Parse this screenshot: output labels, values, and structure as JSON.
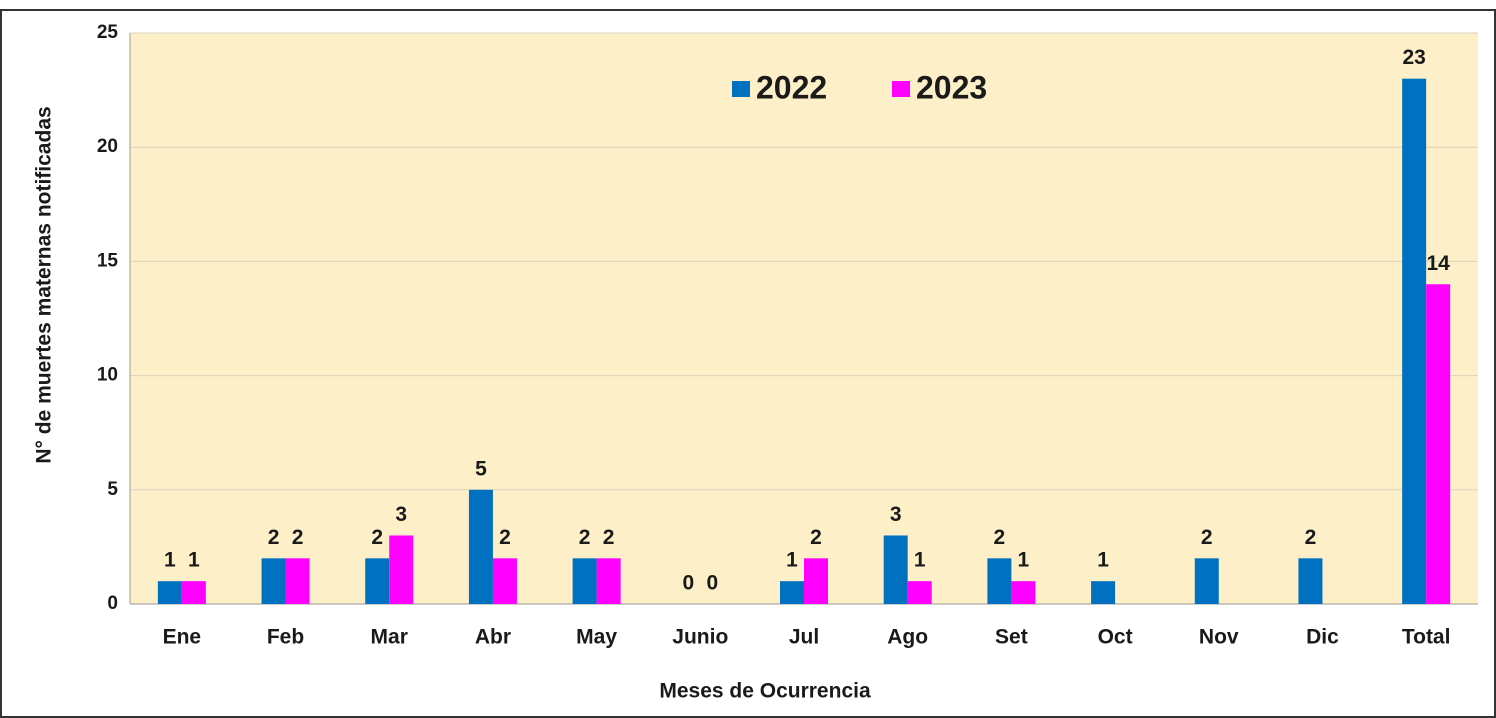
{
  "chart_data": {
    "type": "bar",
    "x_label": "Meses de Ocurrencia",
    "y_label": "N° de muertes maternas notificadas",
    "categories": [
      "Ene",
      "Feb",
      "Mar",
      "Abr",
      "May",
      "Junio",
      "Jul",
      "Ago",
      "Set",
      "Oct",
      "Nov",
      "Dic",
      "Total"
    ],
    "series": [
      {
        "name": "2022",
        "color": "#0070c0",
        "values": [
          1,
          2,
          2,
          5,
          2,
          0,
          1,
          3,
          2,
          1,
          2,
          2,
          23
        ]
      },
      {
        "name": "2023",
        "color": "#ff00ff",
        "values": [
          1,
          2,
          3,
          2,
          2,
          0,
          2,
          1,
          1,
          null,
          null,
          null,
          14
        ]
      }
    ],
    "ylim": [
      0,
      25
    ],
    "yticks": [
      0,
      5,
      10,
      15,
      20,
      25
    ],
    "grid": true,
    "legend": "top"
  }
}
